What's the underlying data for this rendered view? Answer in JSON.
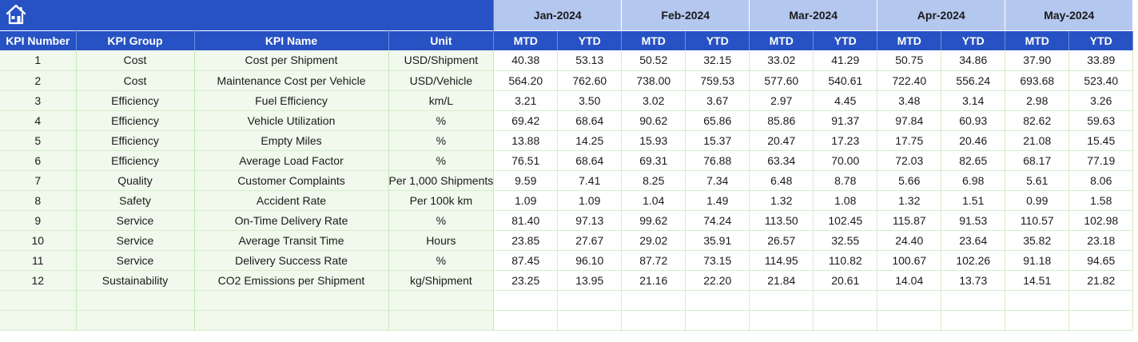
{
  "months": [
    "Jan-2024",
    "Feb-2024",
    "Mar-2024",
    "Apr-2024",
    "May-2024"
  ],
  "headers": {
    "kpi_number": "KPI Number",
    "kpi_group": "KPI Group",
    "kpi_name": "KPI Name",
    "unit": "Unit",
    "mtd": "MTD",
    "ytd": "YTD"
  },
  "icons": {
    "home": "home-icon"
  },
  "colors": {
    "header_blue": "#2752c4",
    "month_band": "#b4c7ef",
    "label_fill": "#f0f9ec",
    "grid_green": "#c6e7b9"
  },
  "rows": [
    {
      "num": "1",
      "group": "Cost",
      "name": "Cost per Shipment",
      "unit": "USD/Shipment",
      "vals": [
        "40.38",
        "53.13",
        "50.52",
        "32.15",
        "33.02",
        "41.29",
        "50.75",
        "34.86",
        "37.90",
        "33.89"
      ]
    },
    {
      "num": "2",
      "group": "Cost",
      "name": "Maintenance Cost per Vehicle",
      "unit": "USD/Vehicle",
      "vals": [
        "564.20",
        "762.60",
        "738.00",
        "759.53",
        "577.60",
        "540.61",
        "722.40",
        "556.24",
        "693.68",
        "523.40"
      ]
    },
    {
      "num": "3",
      "group": "Efficiency",
      "name": "Fuel Efficiency",
      "unit": "km/L",
      "vals": [
        "3.21",
        "3.50",
        "3.02",
        "3.67",
        "2.97",
        "4.45",
        "3.48",
        "3.14",
        "2.98",
        "3.26"
      ]
    },
    {
      "num": "4",
      "group": "Efficiency",
      "name": "Vehicle Utilization",
      "unit": "%",
      "vals": [
        "69.42",
        "68.64",
        "90.62",
        "65.86",
        "85.86",
        "91.37",
        "97.84",
        "60.93",
        "82.62",
        "59.63"
      ]
    },
    {
      "num": "5",
      "group": "Efficiency",
      "name": "Empty Miles",
      "unit": "%",
      "vals": [
        "13.88",
        "14.25",
        "15.93",
        "15.37",
        "20.47",
        "17.23",
        "17.75",
        "20.46",
        "21.08",
        "15.45"
      ]
    },
    {
      "num": "6",
      "group": "Efficiency",
      "name": "Average Load Factor",
      "unit": "%",
      "vals": [
        "76.51",
        "68.64",
        "69.31",
        "76.88",
        "63.34",
        "70.00",
        "72.03",
        "82.65",
        "68.17",
        "77.19"
      ]
    },
    {
      "num": "7",
      "group": "Quality",
      "name": "Customer Complaints",
      "unit": "Per 1,000 Shipments",
      "vals": [
        "9.59",
        "7.41",
        "8.25",
        "7.34",
        "6.48",
        "8.78",
        "5.66",
        "6.98",
        "5.61",
        "8.06"
      ]
    },
    {
      "num": "8",
      "group": "Safety",
      "name": "Accident Rate",
      "unit": "Per 100k km",
      "vals": [
        "1.09",
        "1.09",
        "1.04",
        "1.49",
        "1.32",
        "1.08",
        "1.32",
        "1.51",
        "0.99",
        "1.58"
      ]
    },
    {
      "num": "9",
      "group": "Service",
      "name": "On-Time Delivery Rate",
      "unit": "%",
      "vals": [
        "81.40",
        "97.13",
        "99.62",
        "74.24",
        "113.50",
        "102.45",
        "115.87",
        "91.53",
        "110.57",
        "102.98"
      ]
    },
    {
      "num": "10",
      "group": "Service",
      "name": "Average Transit Time",
      "unit": "Hours",
      "vals": [
        "23.85",
        "27.67",
        "29.02",
        "35.91",
        "26.57",
        "32.55",
        "24.40",
        "23.64",
        "35.82",
        "23.18"
      ]
    },
    {
      "num": "11",
      "group": "Service",
      "name": "Delivery Success Rate",
      "unit": "%",
      "vals": [
        "87.45",
        "96.10",
        "87.72",
        "73.15",
        "114.95",
        "110.82",
        "100.67",
        "102.26",
        "91.18",
        "94.65"
      ]
    },
    {
      "num": "12",
      "group": "Sustainability",
      "name": "CO2 Emissions per Shipment",
      "unit": "kg/Shipment",
      "vals": [
        "23.25",
        "13.95",
        "21.16",
        "22.20",
        "21.84",
        "20.61",
        "14.04",
        "13.73",
        "14.51",
        "21.82"
      ]
    }
  ]
}
